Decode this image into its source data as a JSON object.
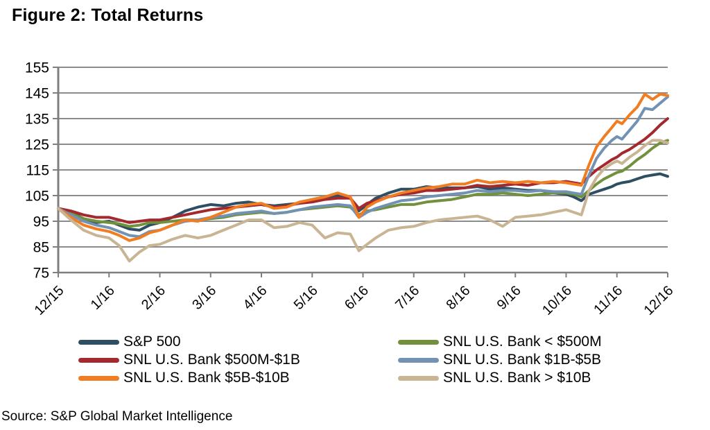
{
  "header": {
    "title": "Figure 2: Total Returns"
  },
  "source": {
    "text": "Source: S&P Global Market Intelligence"
  },
  "chart_data": {
    "type": "line",
    "title": "Figure 2: Total Returns",
    "xlabel": "",
    "ylabel": "",
    "ylim": [
      75,
      155
    ],
    "grid": "horizontal",
    "legend_position": "bottom",
    "style": {
      "grid_color": "#8C8C8C",
      "axis_color": "#7F7F7F",
      "background": "#FFFFFF",
      "text_color": "#000000",
      "axis_font_size": 21,
      "series_stroke_width": 4
    },
    "x_axis": {
      "labels": [
        "12/15",
        "1/16",
        "2/16",
        "3/16",
        "4/16",
        "5/16",
        "6/16",
        "7/16",
        "8/16",
        "9/16",
        "10/16",
        "11/16",
        "12/16"
      ],
      "rotation_deg": -45
    },
    "y_axis": {
      "ticks": [
        75,
        85,
        95,
        105,
        115,
        125,
        135,
        145,
        155
      ],
      "range": [
        75,
        155
      ]
    },
    "x_months": [
      0,
      0.25,
      0.5,
      0.75,
      1,
      1.2,
      1.4,
      1.6,
      1.8,
      2,
      2.25,
      2.5,
      2.75,
      3,
      3.25,
      3.5,
      3.75,
      4,
      4.25,
      4.5,
      4.75,
      5,
      5.25,
      5.5,
      5.75,
      5.92,
      6.08,
      6.25,
      6.5,
      6.75,
      7,
      7.25,
      7.5,
      7.75,
      8,
      8.25,
      8.5,
      8.75,
      9,
      9.25,
      9.5,
      9.75,
      10,
      10.15,
      10.3,
      10.45,
      10.6,
      10.75,
      10.9,
      11,
      11.1,
      11.25,
      11.4,
      11.55,
      11.7,
      11.85,
      12
    ],
    "draw_order": [
      0,
      3,
      1,
      4,
      2,
      5
    ],
    "series": [
      {
        "name": "S&P 500",
        "color": "#2E4E63",
        "values": [
          100,
          98.5,
          96,
          94.5,
          95,
          93.5,
          92,
          91.5,
          93.5,
          94.5,
          96.5,
          99,
          100.5,
          101.5,
          101,
          102,
          102.5,
          101.5,
          101,
          101.5,
          102,
          103.5,
          104.5,
          105,
          104,
          99,
          101.5,
          104,
          106,
          107.5,
          107.5,
          108.5,
          108,
          108,
          108,
          108.5,
          107.5,
          108,
          107.5,
          107,
          107,
          106,
          105.5,
          104.5,
          103,
          105.5,
          106.5,
          107.5,
          108.5,
          109.5,
          110,
          110.5,
          111.5,
          112.5,
          113,
          113.5,
          112.5
        ]
      },
      {
        "name": "SNL U.S. Bank $500M-$1B",
        "color": "#A4292E",
        "values": [
          100,
          99,
          97.5,
          96.5,
          96.5,
          95.5,
          94.5,
          95,
          95.5,
          95.5,
          96.5,
          97.5,
          98.5,
          99.5,
          100,
          100.5,
          101,
          101.5,
          100.5,
          101,
          102,
          102.5,
          103.5,
          104,
          104,
          100,
          102,
          103,
          104.5,
          105.5,
          106,
          107,
          107,
          107.5,
          108,
          109,
          108.5,
          109,
          109.5,
          109,
          110,
          110,
          110.5,
          110,
          109.5,
          112.5,
          115,
          117,
          119,
          120,
          121.5,
          123,
          125,
          127,
          129.5,
          132.5,
          135
        ]
      },
      {
        "name": "SNL U.S. Bank $5B-$10B",
        "color": "#F07D22",
        "values": [
          100,
          96.5,
          93.5,
          92,
          91,
          89.5,
          87.5,
          88.5,
          90.5,
          91.5,
          93.5,
          95.5,
          95,
          96.5,
          98.5,
          100.5,
          101.5,
          102,
          100,
          100.5,
          102.5,
          103.5,
          104.5,
          106,
          104.5,
          96.5,
          100.5,
          102.5,
          104.5,
          106,
          107,
          108,
          108.5,
          109.5,
          109.5,
          111,
          110,
          110.5,
          110,
          110.5,
          110,
          110.5,
          110,
          109.5,
          109,
          117,
          124,
          128,
          131.5,
          134,
          133,
          136.5,
          139.5,
          144.5,
          142.5,
          144.5,
          144
        ]
      },
      {
        "name": "SNL U.S. Bank < $500M",
        "color": "#72913D",
        "values": [
          100,
          98,
          96,
          95,
          94.5,
          94,
          93,
          93.5,
          94.5,
          94.5,
          95,
          95.5,
          95.5,
          96,
          96.5,
          97.5,
          98,
          98.5,
          98,
          98.5,
          99.5,
          100,
          100.5,
          101,
          100.5,
          97.5,
          99,
          99.5,
          100.5,
          101.5,
          101.5,
          102.5,
          103,
          103.5,
          104.5,
          105.5,
          105.5,
          106,
          105.5,
          105,
          105.5,
          106,
          106,
          105.5,
          104.5,
          107,
          109.5,
          111.5,
          113,
          114,
          114.5,
          116.5,
          119,
          121,
          123.5,
          125.5,
          126.5
        ]
      },
      {
        "name": "SNL U.S. Bank $1B-$5B",
        "color": "#7292B4",
        "values": [
          100,
          97.5,
          95,
          93.5,
          92.5,
          91,
          89.5,
          89,
          91,
          91.5,
          93.5,
          95,
          95.5,
          96.5,
          97,
          98,
          98.5,
          99,
          98,
          98.5,
          99.5,
          100.5,
          101,
          101.5,
          101,
          96.5,
          98.5,
          100,
          101.5,
          103,
          103.5,
          104.5,
          105,
          105.5,
          106,
          107,
          106.5,
          107,
          107,
          106.5,
          107,
          106.5,
          106.5,
          106,
          105.5,
          113,
          119.5,
          123.5,
          126.5,
          128,
          127,
          130.5,
          134,
          139,
          138.5,
          141,
          143.5
        ]
      },
      {
        "name": "SNL U.S. Bank > $10B",
        "color": "#C9B493",
        "values": [
          100,
          95.5,
          91.5,
          89.5,
          88.5,
          85.5,
          79.5,
          83,
          85.5,
          86,
          88,
          89.5,
          88.5,
          89.5,
          91.5,
          93.5,
          95.5,
          95.5,
          92.5,
          93,
          94.5,
          93.5,
          88.5,
          90.5,
          90,
          83.5,
          86,
          88.5,
          91.5,
          92.5,
          93,
          94.5,
          95.5,
          96,
          96.5,
          97,
          95.5,
          93,
          96.5,
          97,
          97.5,
          98.5,
          99.5,
          98.5,
          97.5,
          107,
          112,
          115.5,
          117.5,
          118.5,
          117.5,
          120,
          122,
          124.5,
          126.5,
          126.5,
          125.5
        ]
      }
    ]
  }
}
